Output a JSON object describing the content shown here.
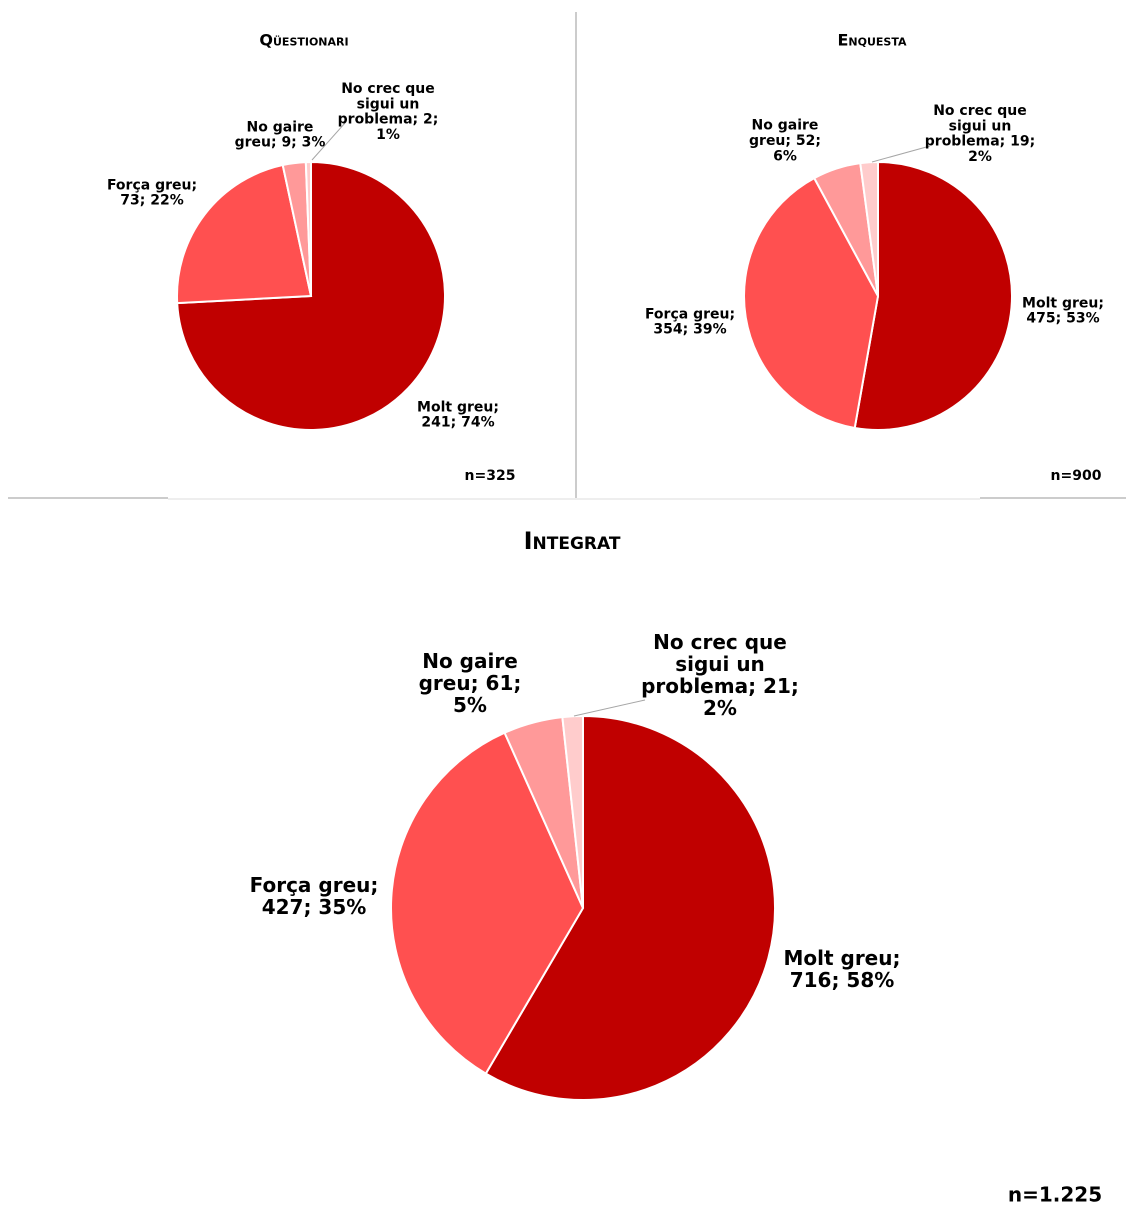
{
  "chart_data": [
    {
      "type": "pie",
      "title": "Qüestionari",
      "note": "n=325",
      "values": [
        241,
        73,
        9,
        2
      ],
      "value_labels": [
        "Molt greu; 241; 74%",
        "Força greu; 73; 22%",
        "No gaire greu; 9; 3%",
        "No crec que sigui un problema; 2; 1%"
      ],
      "colors": [
        "#c00000",
        "#ff5050",
        "#ff9999",
        "#ffcccc"
      ]
    },
    {
      "type": "pie",
      "title": "Enquesta",
      "note": "n=900",
      "values": [
        475,
        354,
        52,
        19
      ],
      "value_labels": [
        "Molt greu; 475; 53%",
        "Força greu; 354; 39%",
        "No gaire greu; 52; 6%",
        "No crec que sigui un problema; 19; 2%"
      ],
      "colors": [
        "#c00000",
        "#ff5050",
        "#ff9999",
        "#ffcccc"
      ]
    },
    {
      "type": "pie",
      "title": "Integrat",
      "note": "n=1.225",
      "values": [
        716,
        427,
        61,
        21
      ],
      "value_labels": [
        "Molt greu; 716; 58%",
        "Força greu; 427; 35%",
        "No gaire greu; 61; 5%",
        "No crec que sigui un problema; 21; 2%"
      ],
      "colors": [
        "#c00000",
        "#ff5050",
        "#ff9999",
        "#ffcccc"
      ]
    }
  ]
}
